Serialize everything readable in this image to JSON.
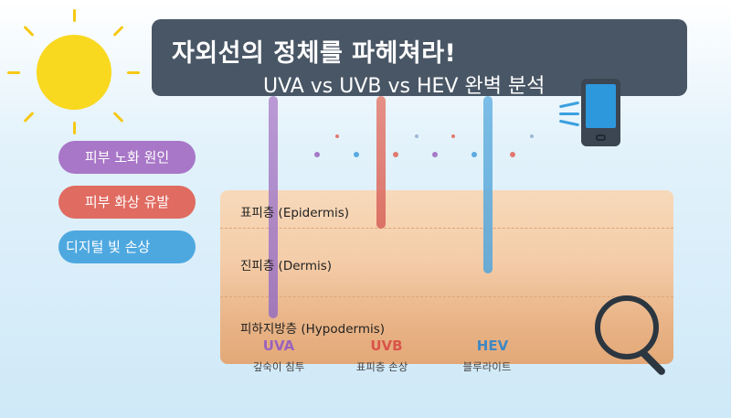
{
  "title": {
    "main": "자외선의 정체를 파헤쳐라!",
    "sub": "UVA vs UVB vs HEV 완벽 분석"
  },
  "pills": [
    {
      "label": "피부 노화 원인",
      "color": "#a877c7"
    },
    {
      "label": "피부 화상 유발",
      "color": "#e06b61"
    },
    {
      "label": "디지털 빛 손상",
      "color": "#4ea8e0"
    }
  ],
  "layers": [
    {
      "label": "표피층 (Epidermis)"
    },
    {
      "label": "진피층 (Dermis)"
    },
    {
      "label": "피하지방층 (Hypodermis)"
    }
  ],
  "rays": [
    {
      "name": "UVA",
      "desc": "깊숙이 침투",
      "color": "#9a62bd"
    },
    {
      "name": "UVB",
      "desc": "표피층 손상",
      "color": "#d9544a"
    },
    {
      "name": "HEV",
      "desc": "블루라이트",
      "color": "#3f88c4"
    }
  ],
  "icons": [
    "sun-icon",
    "smartphone-icon",
    "magnifier-icon"
  ]
}
